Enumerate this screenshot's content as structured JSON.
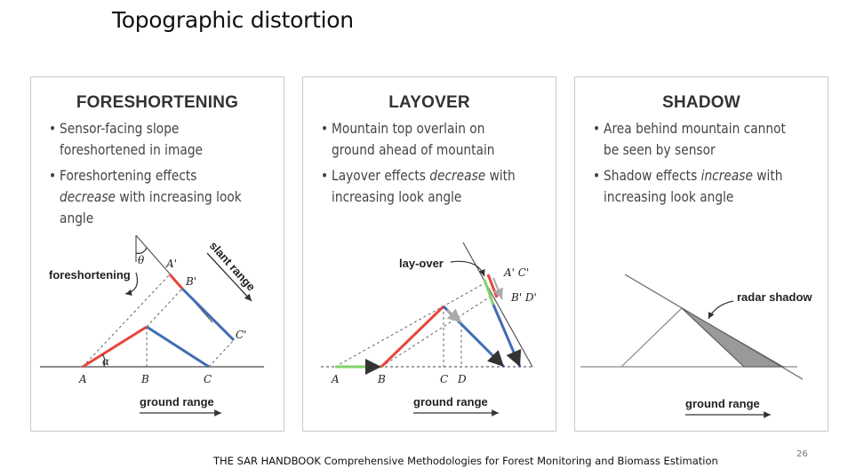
{
  "title": "Topographic distortion",
  "panels": [
    {
      "heading": "FORESHORTENING",
      "bullets": [
        {
          "pre": "Sensor-facing slope foreshortened in image",
          "em": "",
          "post": ""
        },
        {
          "pre": "Foreshortening effects ",
          "em": "decrease",
          "post": " with increasing look angle"
        }
      ],
      "labels": {
        "A": "A",
        "B": "B",
        "C": "C",
        "A_prime": "A'",
        "B_prime": "B'",
        "C_prime": "C'",
        "theta": "θ",
        "alpha": "α",
        "effect": "foreshortening",
        "slant": "slant range",
        "ground": "ground range"
      }
    },
    {
      "heading": "LAYOVER",
      "bullets": [
        {
          "pre": "Mountain top overlain on ground ahead of mountain",
          "em": "",
          "post": ""
        },
        {
          "pre": "Layover effects ",
          "em": "decrease",
          "post": " with increasing look angle"
        }
      ],
      "labels": {
        "A": "A",
        "B": "B",
        "C": "C",
        "D": "D",
        "AC_prime": "A' C'",
        "BD_prime": "B' D'",
        "effect": "lay-over",
        "ground": "ground range"
      }
    },
    {
      "heading": "SHADOW",
      "bullets": [
        {
          "pre": "Area behind mountain cannot be seen by sensor",
          "em": "",
          "post": ""
        },
        {
          "pre": "Shadow effects ",
          "em": "increase",
          "post": " with increasing look angle"
        }
      ],
      "labels": {
        "effect": "radar shadow",
        "ground": "ground range"
      }
    }
  ],
  "colors": {
    "red": "#e8453c",
    "blue": "#3f6db3",
    "green": "#7fd36a",
    "gray_line": "#888888",
    "shadow_fill": "#9a9a9a"
  },
  "footer": "THE SAR HANDBOOK Comprehensive Methodologies for Forest Monitoring and Biomass Estimation",
  "page_number": "26"
}
